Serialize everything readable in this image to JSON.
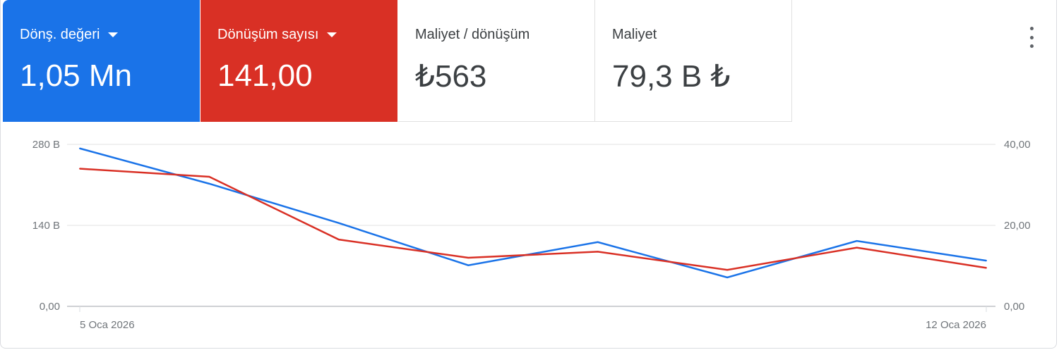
{
  "metrics": [
    {
      "label": "Dönş. değeri",
      "value": "1,05 Mn",
      "selected": true,
      "color": "#1a73e8"
    },
    {
      "label": "Dönüşüm sayısı",
      "value": "141,00",
      "selected": true,
      "color": "#d93025"
    },
    {
      "label": "Maliyet / dönüşüm",
      "value": "₺563",
      "selected": false
    },
    {
      "label": "Maliyet",
      "value": "79,3 B ₺",
      "selected": false
    }
  ],
  "menu_icon": "more-vert-icon",
  "chart_data": {
    "type": "line",
    "x": [
      "5 Oca 2026",
      "6 Oca 2026",
      "7 Oca 2026",
      "8 Oca 2026",
      "9 Oca 2026",
      "10 Oca 2026",
      "11 Oca 2026",
      "12 Oca 2026"
    ],
    "x_tick_labels": [
      "5 Oca 2026",
      "12 Oca 2026"
    ],
    "y_left": {
      "range": [
        0,
        280
      ],
      "unit": "B",
      "ticks": [
        "0,00",
        "140 B",
        "280 B"
      ]
    },
    "y_right": {
      "range": [
        0,
        40
      ],
      "ticks": [
        "0,00",
        "20,00",
        "40,00"
      ]
    },
    "grid": true,
    "series": [
      {
        "name": "Dönş. değeri",
        "axis": "left",
        "color": "#1a73e8",
        "values": [
          273,
          212,
          144,
          71,
          111,
          50,
          113,
          79
        ]
      },
      {
        "name": "Dönüşüm sayısı",
        "axis": "right",
        "color": "#d93025",
        "values": [
          34,
          32,
          16.5,
          12,
          13.5,
          9,
          14.5,
          9.5
        ]
      }
    ]
  }
}
